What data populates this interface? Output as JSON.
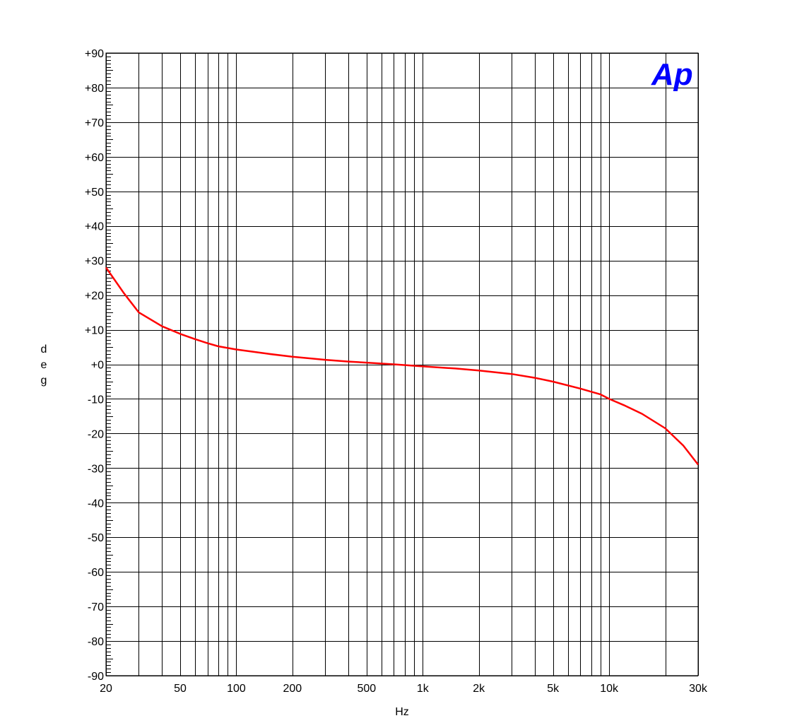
{
  "chart_data": {
    "type": "line",
    "title": "",
    "xlabel": "Hz",
    "ylabel": "deg",
    "x_scale": "log",
    "xlim": [
      20,
      30000
    ],
    "ylim": [
      -90,
      90
    ],
    "grid": true,
    "x_gridlines": [
      20,
      30,
      40,
      50,
      60,
      70,
      80,
      90,
      100,
      200,
      300,
      400,
      500,
      600,
      700,
      800,
      900,
      1000,
      2000,
      3000,
      4000,
      5000,
      6000,
      7000,
      8000,
      9000,
      10000,
      20000,
      30000
    ],
    "x_ticks": [
      {
        "value": 20,
        "label": "20"
      },
      {
        "value": 50,
        "label": "50"
      },
      {
        "value": 100,
        "label": "100"
      },
      {
        "value": 200,
        "label": "200"
      },
      {
        "value": 500,
        "label": "500"
      },
      {
        "value": 1000,
        "label": "1k"
      },
      {
        "value": 2000,
        "label": "2k"
      },
      {
        "value": 5000,
        "label": "5k"
      },
      {
        "value": 10000,
        "label": "10k"
      },
      {
        "value": 30000,
        "label": "30k"
      }
    ],
    "y_ticks": [
      {
        "value": 90,
        "label": "+90"
      },
      {
        "value": 80,
        "label": "+80"
      },
      {
        "value": 70,
        "label": "+70"
      },
      {
        "value": 60,
        "label": "+60"
      },
      {
        "value": 50,
        "label": "+50"
      },
      {
        "value": 40,
        "label": "+40"
      },
      {
        "value": 30,
        "label": "+30"
      },
      {
        "value": 20,
        "label": "+20"
      },
      {
        "value": 10,
        "label": "+10"
      },
      {
        "value": 0,
        "label": "+0"
      },
      {
        "value": -10,
        "label": "-10"
      },
      {
        "value": -20,
        "label": "-20"
      },
      {
        "value": -30,
        "label": "-30"
      },
      {
        "value": -40,
        "label": "-40"
      },
      {
        "value": -50,
        "label": "-50"
      },
      {
        "value": -60,
        "label": "-60"
      },
      {
        "value": -70,
        "label": "-70"
      },
      {
        "value": -80,
        "label": "-80"
      },
      {
        "value": -90,
        "label": "-90"
      }
    ],
    "series": [
      {
        "color": "#ff0000",
        "x": [
          20,
          25,
          30,
          40,
          50,
          60,
          70,
          80,
          100,
          150,
          200,
          300,
          400,
          500,
          700,
          1000,
          1500,
          2000,
          3000,
          4000,
          5000,
          7000,
          9000,
          10000,
          12000,
          15000,
          20000,
          25000,
          30000
        ],
        "y": [
          28,
          20.5,
          15,
          11,
          8.8,
          7.3,
          6.1,
          5.2,
          4.3,
          3.0,
          2.2,
          1.3,
          0.8,
          0.5,
          0.0,
          -0.6,
          -1.2,
          -1.8,
          -2.8,
          -3.9,
          -5.0,
          -7.0,
          -8.7,
          -10.0,
          -11.8,
          -14.3,
          -18.5,
          -23.5,
          -29.0
        ]
      }
    ]
  },
  "logo": {
    "text": "Ap",
    "color": "#0000ff"
  }
}
